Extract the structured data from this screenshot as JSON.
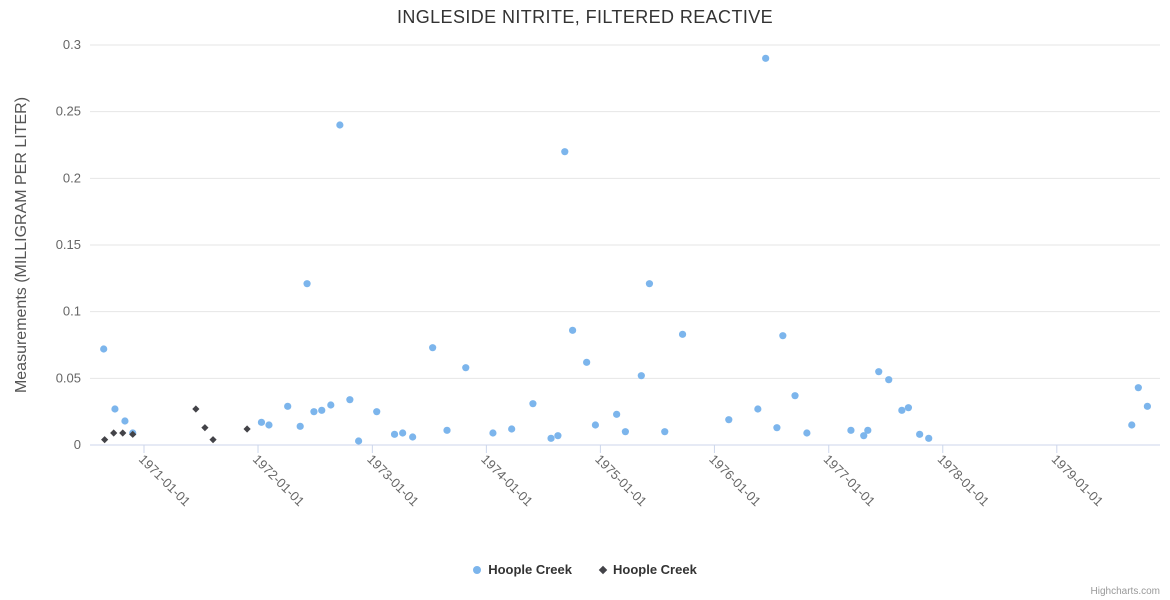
{
  "credits": {
    "label": "Highcharts.com"
  },
  "chart_data": {
    "type": "scatter",
    "title": "INGLESIDE NITRITE, FILTERED REACTIVE",
    "xlabel": "",
    "ylabel": "Measurements (MILLIGRAM PER LITER)",
    "ylim": [
      0,
      0.3
    ],
    "xlim": [
      "1970-07-10",
      "1979-11-25"
    ],
    "grid": "horizontal",
    "legend_position": "bottom-center",
    "colors": {
      "grid": "#e6e6e6",
      "axis_line": "#ccd6eb",
      "axis_label": "#666666",
      "series_blue": "#7cb5ec",
      "series_black": "#434348"
    },
    "yAxis": {
      "max": 0.3,
      "ticks": [
        {
          "value": 0,
          "label": "0"
        },
        {
          "value": 0.05,
          "label": "0.05"
        },
        {
          "value": 0.1,
          "label": "0.1"
        },
        {
          "value": 0.15,
          "label": "0.15"
        },
        {
          "value": 0.2,
          "label": "0.2"
        },
        {
          "value": 0.25,
          "label": "0.25"
        },
        {
          "value": 0.3,
          "label": "0.3"
        }
      ]
    },
    "xAxis": {
      "ticks": [
        "1971-01-01",
        "1972-01-01",
        "1973-01-01",
        "1974-01-01",
        "1975-01-01",
        "1976-01-01",
        "1977-01-01",
        "1978-01-01",
        "1979-01-01"
      ]
    },
    "series": [
      {
        "name": "Hoople Creek",
        "marker": "circle",
        "color": "#7cb5ec",
        "points": [
          {
            "date": "1970-08-25",
            "value": 0.072
          },
          {
            "date": "1970-09-30",
            "value": 0.027
          },
          {
            "date": "1970-11-01",
            "value": 0.018
          },
          {
            "date": "1970-11-26",
            "value": 0.009
          },
          {
            "date": "1972-01-12",
            "value": 0.017
          },
          {
            "date": "1972-02-05",
            "value": 0.015
          },
          {
            "date": "1972-04-05",
            "value": 0.029
          },
          {
            "date": "1972-05-15",
            "value": 0.014
          },
          {
            "date": "1972-06-06",
            "value": 0.121
          },
          {
            "date": "1972-06-28",
            "value": 0.025
          },
          {
            "date": "1972-07-23",
            "value": 0.026
          },
          {
            "date": "1972-08-21",
            "value": 0.03
          },
          {
            "date": "1972-09-19",
            "value": 0.24
          },
          {
            "date": "1972-10-21",
            "value": 0.034
          },
          {
            "date": "1972-11-18",
            "value": 0.003
          },
          {
            "date": "1973-01-15",
            "value": 0.025
          },
          {
            "date": "1973-03-13",
            "value": 0.008
          },
          {
            "date": "1973-04-08",
            "value": 0.009
          },
          {
            "date": "1973-05-10",
            "value": 0.006
          },
          {
            "date": "1973-07-13",
            "value": 0.073
          },
          {
            "date": "1973-08-28",
            "value": 0.011
          },
          {
            "date": "1973-10-27",
            "value": 0.058
          },
          {
            "date": "1974-01-22",
            "value": 0.009
          },
          {
            "date": "1974-03-23",
            "value": 0.012
          },
          {
            "date": "1974-05-30",
            "value": 0.031
          },
          {
            "date": "1974-07-27",
            "value": 0.005
          },
          {
            "date": "1974-08-18",
            "value": 0.007
          },
          {
            "date": "1974-09-09",
            "value": 0.22
          },
          {
            "date": "1974-10-04",
            "value": 0.086
          },
          {
            "date": "1974-11-18",
            "value": 0.062
          },
          {
            "date": "1974-12-16",
            "value": 0.015
          },
          {
            "date": "1975-02-22",
            "value": 0.023
          },
          {
            "date": "1975-03-22",
            "value": 0.01
          },
          {
            "date": "1975-05-12",
            "value": 0.052
          },
          {
            "date": "1975-06-07",
            "value": 0.121
          },
          {
            "date": "1975-07-26",
            "value": 0.01
          },
          {
            "date": "1975-09-21",
            "value": 0.083
          },
          {
            "date": "1976-02-16",
            "value": 0.019
          },
          {
            "date": "1976-05-19",
            "value": 0.027
          },
          {
            "date": "1976-06-13",
            "value": 0.29
          },
          {
            "date": "1976-07-19",
            "value": 0.013
          },
          {
            "date": "1976-08-07",
            "value": 0.082
          },
          {
            "date": "1976-09-15",
            "value": 0.037
          },
          {
            "date": "1976-10-23",
            "value": 0.009
          },
          {
            "date": "1977-03-13",
            "value": 0.011
          },
          {
            "date": "1977-04-23",
            "value": 0.007
          },
          {
            "date": "1977-05-06",
            "value": 0.011
          },
          {
            "date": "1977-06-10",
            "value": 0.055
          },
          {
            "date": "1977-07-12",
            "value": 0.049
          },
          {
            "date": "1977-08-23",
            "value": 0.026
          },
          {
            "date": "1977-09-13",
            "value": 0.028
          },
          {
            "date": "1977-10-19",
            "value": 0.008
          },
          {
            "date": "1977-11-17",
            "value": 0.005
          },
          {
            "date": "1979-08-29",
            "value": 0.015
          },
          {
            "date": "1979-09-19",
            "value": 0.043
          },
          {
            "date": "1979-10-18",
            "value": 0.029
          }
        ]
      },
      {
        "name": "Hoople Creek",
        "marker": "diamond",
        "color": "#434348",
        "points": [
          {
            "date": "1970-08-28",
            "value": 0.004
          },
          {
            "date": "1970-09-26",
            "value": 0.009
          },
          {
            "date": "1970-10-25",
            "value": 0.009
          },
          {
            "date": "1970-11-26",
            "value": 0.008
          },
          {
            "date": "1971-06-16",
            "value": 0.027
          },
          {
            "date": "1971-07-15",
            "value": 0.013
          },
          {
            "date": "1971-08-10",
            "value": 0.004
          },
          {
            "date": "1971-11-27",
            "value": 0.012
          }
        ]
      }
    ]
  }
}
